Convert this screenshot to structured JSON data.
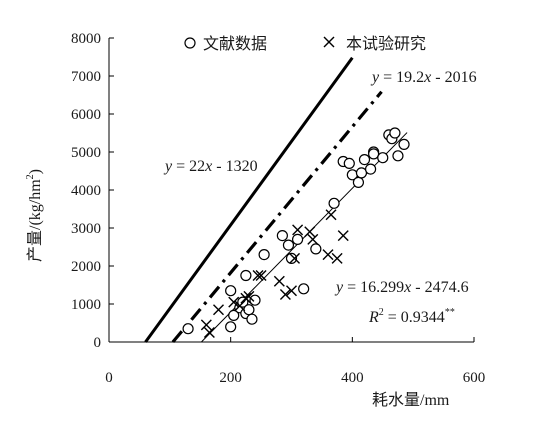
{
  "chart_data": {
    "type": "scatter",
    "title": "",
    "xlabel": "耗水量/mm",
    "ylabel_main": "产量/(kg/hm",
    "ylabel_sup": "2",
    "ylabel_end": ")",
    "xlim": [
      0,
      600
    ],
    "ylim": [
      0,
      8000
    ],
    "xticks": [
      0,
      200,
      400,
      600
    ],
    "yticks": [
      0,
      1000,
      2000,
      3000,
      4000,
      5000,
      6000,
      7000,
      8000
    ],
    "grid": false,
    "legend_position": "top",
    "series": [
      {
        "name": "文献数据",
        "marker": "circle",
        "points": [
          [
            130,
            350
          ],
          [
            200,
            400
          ],
          [
            200,
            1350
          ],
          [
            205,
            700
          ],
          [
            215,
            900
          ],
          [
            220,
            1050
          ],
          [
            225,
            750
          ],
          [
            225,
            1750
          ],
          [
            230,
            850
          ],
          [
            235,
            600
          ],
          [
            240,
            1100
          ],
          [
            255,
            2300
          ],
          [
            285,
            2800
          ],
          [
            295,
            2550
          ],
          [
            300,
            2200
          ],
          [
            310,
            2700
          ],
          [
            320,
            1400
          ],
          [
            340,
            2450
          ],
          [
            370,
            3650
          ],
          [
            385,
            4750
          ],
          [
            395,
            4700
          ],
          [
            400,
            4400
          ],
          [
            410,
            4200
          ],
          [
            415,
            4450
          ],
          [
            420,
            4800
          ],
          [
            430,
            4550
          ],
          [
            435,
            5000
          ],
          [
            435,
            4950
          ],
          [
            450,
            4850
          ],
          [
            460,
            5450
          ],
          [
            465,
            5350
          ],
          [
            470,
            5500
          ],
          [
            475,
            4900
          ],
          [
            485,
            5200
          ]
        ]
      },
      {
        "name": "本试验研究",
        "marker": "x",
        "points": [
          [
            160,
            450
          ],
          [
            165,
            250
          ],
          [
            180,
            850
          ],
          [
            205,
            1050
          ],
          [
            215,
            950
          ],
          [
            225,
            1150
          ],
          [
            230,
            1200
          ],
          [
            245,
            1750
          ],
          [
            250,
            1750
          ],
          [
            280,
            1600
          ],
          [
            290,
            1250
          ],
          [
            300,
            1350
          ],
          [
            305,
            2200
          ],
          [
            310,
            2950
          ],
          [
            330,
            2900
          ],
          [
            335,
            2700
          ],
          [
            360,
            2300
          ],
          [
            365,
            3350
          ],
          [
            375,
            2200
          ],
          [
            385,
            2800
          ]
        ]
      }
    ],
    "fit_lines": [
      {
        "label": "y = 22x - 1320",
        "slope": 22,
        "intercept": -1320,
        "style": "solid-thick",
        "x_range": [
          60,
          400
        ]
      },
      {
        "label": "y = 19.2x - 2016",
        "slope": 19.2,
        "intercept": -2016,
        "style": "dash-dot-thick",
        "x_range": [
          105,
          448
        ]
      },
      {
        "label": "y = 16.299x - 2474.6",
        "slope": 16.299,
        "intercept": -2474.6,
        "style": "solid-thin",
        "x_range": [
          150,
          490
        ]
      }
    ],
    "annotations": {
      "eq1_y": "y",
      "eq1_rest": " = 22",
      "eq1_x": "x",
      "eq1_tail": " - 1320",
      "eq2_y": "y",
      "eq2_rest": " = 19.2",
      "eq2_x": "x",
      "eq2_tail": " - 2016",
      "eq3_y": "y",
      "eq3_rest": " = 16.299",
      "eq3_x": "x",
      "eq3_tail": " - 2474.6",
      "r2_r": "R",
      "r2_sup": "2",
      "r2_rest": " = 0.9344",
      "r2_stars": "**"
    }
  }
}
